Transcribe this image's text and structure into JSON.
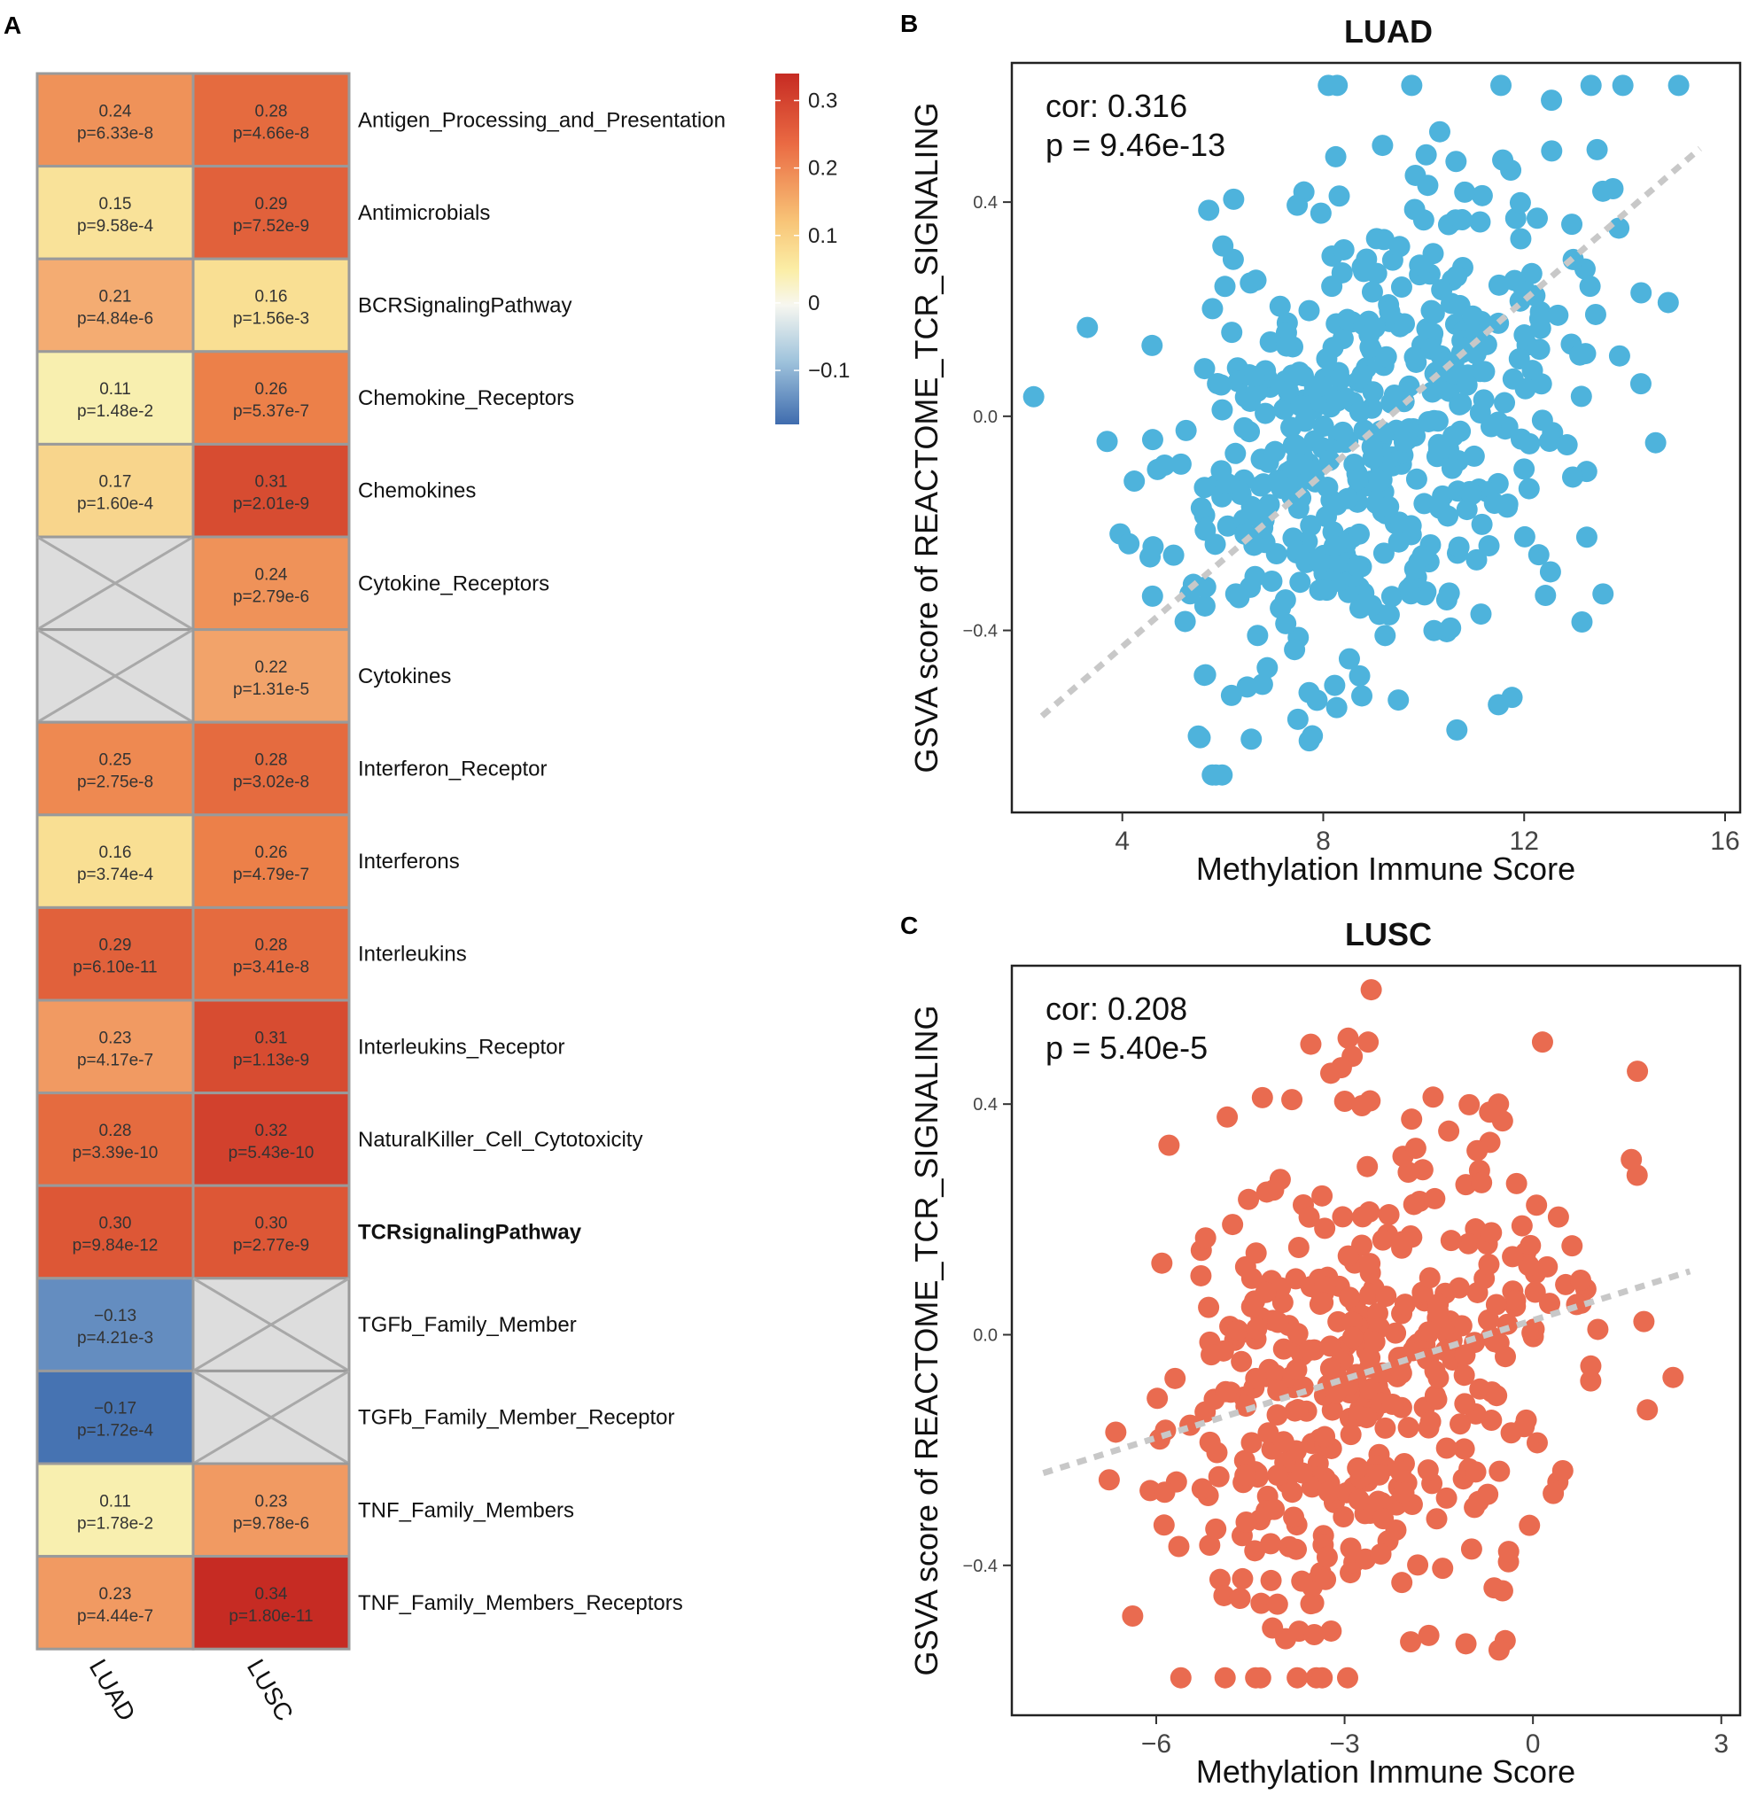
{
  "panels": {
    "a": "A",
    "b": "B",
    "c": "C"
  },
  "heatmap": {
    "columns": [
      "LUAD",
      "LUSC"
    ],
    "rows": [
      {
        "label": "Antigen_Processing_and_Presentation",
        "bold": false,
        "luad": {
          "cor": "0.24",
          "p": "p=6.33e-8",
          "v": 0.24
        },
        "lusc": {
          "cor": "0.28",
          "p": "p=4.66e-8",
          "v": 0.28
        }
      },
      {
        "label": "Antimicrobials",
        "bold": false,
        "luad": {
          "cor": "0.15",
          "p": "p=9.58e-4",
          "v": 0.15
        },
        "lusc": {
          "cor": "0.29",
          "p": "p=7.52e-9",
          "v": 0.29
        }
      },
      {
        "label": "BCRSignalingPathway",
        "bold": false,
        "luad": {
          "cor": "0.21",
          "p": "p=4.84e-6",
          "v": 0.21
        },
        "lusc": {
          "cor": "0.16",
          "p": "p=1.56e-3",
          "v": 0.16
        }
      },
      {
        "label": "Chemokine_Receptors",
        "bold": false,
        "luad": {
          "cor": "0.11",
          "p": "p=1.48e-2",
          "v": 0.11
        },
        "lusc": {
          "cor": "0.26",
          "p": "p=5.37e-7",
          "v": 0.26
        }
      },
      {
        "label": "Chemokines",
        "bold": false,
        "luad": {
          "cor": "0.17",
          "p": "p=1.60e-4",
          "v": 0.17
        },
        "lusc": {
          "cor": "0.31",
          "p": "p=2.01e-9",
          "v": 0.31
        }
      },
      {
        "label": "Cytokine_Receptors",
        "bold": false,
        "luad": null,
        "lusc": {
          "cor": "0.24",
          "p": "p=2.79e-6",
          "v": 0.24
        }
      },
      {
        "label": "Cytokines",
        "bold": false,
        "luad": null,
        "lusc": {
          "cor": "0.22",
          "p": "p=1.31e-5",
          "v": 0.22
        }
      },
      {
        "label": "Interferon_Receptor",
        "bold": false,
        "luad": {
          "cor": "0.25",
          "p": "p=2.75e-8",
          "v": 0.25
        },
        "lusc": {
          "cor": "0.28",
          "p": "p=3.02e-8",
          "v": 0.28
        }
      },
      {
        "label": "Interferons",
        "bold": false,
        "luad": {
          "cor": "0.16",
          "p": "p=3.74e-4",
          "v": 0.16
        },
        "lusc": {
          "cor": "0.26",
          "p": "p=4.79e-7",
          "v": 0.26
        }
      },
      {
        "label": "Interleukins",
        "bold": false,
        "luad": {
          "cor": "0.29",
          "p": "p=6.10e-11",
          "v": 0.29
        },
        "lusc": {
          "cor": "0.28",
          "p": "p=3.41e-8",
          "v": 0.28
        }
      },
      {
        "label": "Interleukins_Receptor",
        "bold": false,
        "luad": {
          "cor": "0.23",
          "p": "p=4.17e-7",
          "v": 0.23
        },
        "lusc": {
          "cor": "0.31",
          "p": "p=1.13e-9",
          "v": 0.31
        }
      },
      {
        "label": "NaturalKiller_Cell_Cytotoxicity",
        "bold": false,
        "luad": {
          "cor": "0.28",
          "p": "p=3.39e-10",
          "v": 0.28
        },
        "lusc": {
          "cor": "0.32",
          "p": "p=5.43e-10",
          "v": 0.32
        }
      },
      {
        "label": "TCRsignalingPathway",
        "bold": true,
        "luad": {
          "cor": "0.30",
          "p": "p=9.84e-12",
          "v": 0.3
        },
        "lusc": {
          "cor": "0.30",
          "p": "p=2.77e-9",
          "v": 0.3
        }
      },
      {
        "label": "TGFb_Family_Member",
        "bold": false,
        "luad": {
          "cor": "−0.13",
          "p": "p=4.21e-3",
          "v": -0.13
        },
        "lusc": null
      },
      {
        "label": "TGFb_Family_Member_Receptor",
        "bold": false,
        "luad": {
          "cor": "−0.17",
          "p": "p=1.72e-4",
          "v": -0.17
        },
        "lusc": null
      },
      {
        "label": "TNF_Family_Members",
        "bold": false,
        "luad": {
          "cor": "0.11",
          "p": "p=1.78e-2",
          "v": 0.11
        },
        "lusc": {
          "cor": "0.23",
          "p": "p=9.78e-6",
          "v": 0.23
        }
      },
      {
        "label": "TNF_Family_Members_Receptors",
        "bold": false,
        "luad": {
          "cor": "0.23",
          "p": "p=4.44e-7",
          "v": 0.23
        },
        "lusc": {
          "cor": "0.34",
          "p": "p=1.80e-11",
          "v": 0.34
        }
      }
    ],
    "colorbar": {
      "min": -0.18,
      "max": 0.34,
      "ticks": [
        {
          "value": 0.3,
          "label": "0.3"
        },
        {
          "value": 0.2,
          "label": "0.2"
        },
        {
          "value": 0.1,
          "label": "0.1"
        },
        {
          "value": 0.0,
          "label": "0"
        },
        {
          "value": -0.1,
          "label": "−0.1"
        }
      ],
      "colors": {
        "neg": "#3f6cae",
        "mid": "#f7f7f0",
        "low": "#fbe9a1",
        "mid_high": "#f4a15d",
        "high": "#c62b23"
      }
    }
  },
  "chart_data": [
    {
      "type": "scatter",
      "title": "LUAD",
      "xlabel": "Methylation Immune Score",
      "ylabel": "GSVA score of REACTOME_TCR_SIGNALING",
      "xlim": [
        1.8,
        16.3
      ],
      "ylim": [
        -0.74,
        0.66
      ],
      "xticks": [
        {
          "value": 4,
          "label": "4"
        },
        {
          "value": 8,
          "label": "8"
        },
        {
          "value": 12,
          "label": "12"
        },
        {
          "value": 16,
          "label": "16"
        }
      ],
      "yticks": [
        {
          "value": 0.4,
          "label": "0.4"
        },
        {
          "value": 0.0,
          "label": "0.0"
        },
        {
          "value": -0.4,
          "label": "−0.4"
        }
      ],
      "annotation": {
        "cor": "cor: 0.316",
        "p": "p = 9.46e-13"
      },
      "fit": {
        "x0": 2.4,
        "y0": -0.56,
        "x1": 15.5,
        "y1": 0.5
      },
      "point_color": "#4eb3dc",
      "fit_color": "#c8c8c8",
      "n_points": 500,
      "cor": 0.316,
      "seed": 11
    },
    {
      "type": "scatter",
      "title": "LUSC",
      "xlabel": "Methylation Immune Score",
      "ylabel": "GSVA score of REACTOME_TCR_SIGNALING",
      "xlim": [
        -8.3,
        3.3
      ],
      "ylim": [
        -0.66,
        0.64
      ],
      "xticks": [
        {
          "value": -6,
          "label": "−6"
        },
        {
          "value": -3,
          "label": "−3"
        },
        {
          "value": 0,
          "label": "0"
        },
        {
          "value": 3,
          "label": "3"
        }
      ],
      "yticks": [
        {
          "value": 0.4,
          "label": "0.4"
        },
        {
          "value": 0.0,
          "label": "0.0"
        },
        {
          "value": -0.4,
          "label": "−0.4"
        }
      ],
      "annotation": {
        "cor": "cor: 0.208",
        "p": "p = 5.40e-5"
      },
      "fit": {
        "x0": -7.8,
        "y0": -0.24,
        "x1": 2.5,
        "y1": 0.11
      },
      "point_color": "#e96b50",
      "fit_color": "#c8c8c8",
      "n_points": 440,
      "cor": 0.208,
      "seed": 29
    }
  ]
}
